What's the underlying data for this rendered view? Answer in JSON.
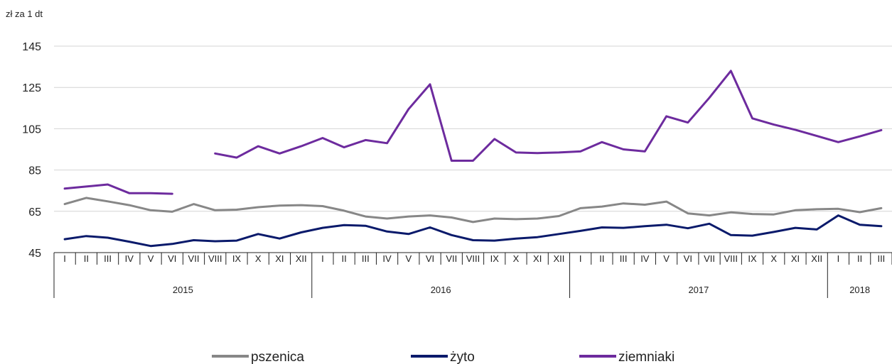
{
  "chart_data": {
    "type": "line",
    "ylabel": "zł za 1 dt",
    "ylim": [
      45,
      145
    ],
    "yticks": [
      45,
      65,
      85,
      105,
      125,
      145
    ],
    "grid": true,
    "legend_position": "bottom",
    "months": [
      "I",
      "II",
      "III",
      "IV",
      "V",
      "VI",
      "VII",
      "VIII",
      "IX",
      "X",
      "XI",
      "XII",
      "I",
      "II",
      "III",
      "IV",
      "V",
      "VI",
      "VII",
      "VIII",
      "IX",
      "X",
      "XI",
      "XII",
      "I",
      "II",
      "III",
      "IV",
      "V",
      "VI",
      "VII",
      "VIII",
      "IX",
      "X",
      "XI",
      "XII",
      "I",
      "II",
      "III"
    ],
    "years": [
      {
        "label": "2015",
        "months": 12
      },
      {
        "label": "2016",
        "months": 12
      },
      {
        "label": "2017",
        "months": 12
      },
      {
        "label": "2018",
        "months": 3
      }
    ],
    "series": [
      {
        "name": "pszenica",
        "color": "#878787",
        "values": [
          68.5,
          71.5,
          69.8,
          68.0,
          65.5,
          64.8,
          68.5,
          65.5,
          65.8,
          67.0,
          67.8,
          68.0,
          67.5,
          65.3,
          62.5,
          61.5,
          62.5,
          63.0,
          62.0,
          59.8,
          61.5,
          61.2,
          61.5,
          62.7,
          66.5,
          67.3,
          68.8,
          68.2,
          69.7,
          64.0,
          63.0,
          64.5,
          63.7,
          63.5,
          65.5,
          66.0,
          66.2,
          64.6,
          66.5
        ]
      },
      {
        "name": "żyto",
        "color": "#0a1a6b",
        "values": [
          51.5,
          53.0,
          52.2,
          50.3,
          48.2,
          49.2,
          51.0,
          50.5,
          50.8,
          54.0,
          51.8,
          54.8,
          57.0,
          58.3,
          58.0,
          55.2,
          54.0,
          57.2,
          53.5,
          51.0,
          50.8,
          51.8,
          52.5,
          54.0,
          55.5,
          57.2,
          57.0,
          57.8,
          58.5,
          56.8,
          59.0,
          53.5,
          53.2,
          55.0,
          57.0,
          56.2,
          63.0,
          58.5,
          57.8
        ]
      },
      {
        "name": "ziemniaki",
        "color": "#6d2b9e",
        "values": [
          76.0,
          77.0,
          78.0,
          73.8,
          73.8,
          73.5,
          null,
          93.0,
          91.0,
          96.5,
          93.0,
          96.5,
          100.5,
          96.0,
          99.5,
          98.0,
          114.5,
          126.5,
          89.5,
          89.5,
          100.0,
          93.5,
          93.2,
          93.5,
          94.0,
          98.5,
          95.0,
          94.0,
          111.0,
          108.0,
          120.0,
          133.0,
          110.0,
          107.0,
          104.5,
          101.5,
          98.5,
          101.3,
          104.3
        ]
      }
    ]
  }
}
